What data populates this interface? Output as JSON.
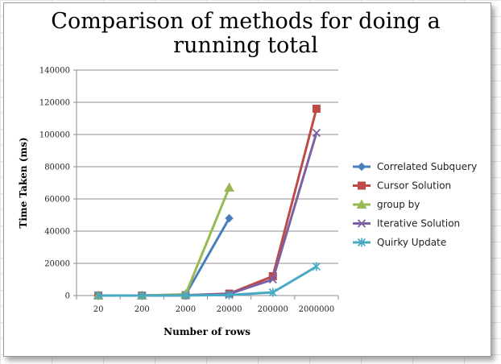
{
  "chart_data": {
    "type": "line",
    "title_lines": [
      "Comparison of methods for doing a",
      "running total"
    ],
    "xlabel": "Number of rows",
    "ylabel": "Time Taken (ms)",
    "categories": [
      "20",
      "200",
      "2000",
      "20000",
      "200000",
      "2000000"
    ],
    "y_ticks": [
      "0",
      "20000",
      "40000",
      "60000",
      "80000",
      "100000",
      "120000",
      "140000"
    ],
    "ylim": [
      0,
      140000
    ],
    "grid": "horizontal",
    "legend_position": "right",
    "series": [
      {
        "name": "Correlated Subquery",
        "color": "#4a7ebb",
        "marker": "diamond",
        "values": [
          0,
          0,
          500,
          48000,
          null,
          null
        ]
      },
      {
        "name": "Cursor Solution",
        "color": "#be4b48",
        "marker": "square",
        "values": [
          0,
          0,
          200,
          1200,
          12000,
          116000
        ]
      },
      {
        "name": "group by",
        "color": "#98b954",
        "marker": "triangle",
        "values": [
          0,
          0,
          800,
          67000,
          null,
          null
        ]
      },
      {
        "name": "Iterative Solution",
        "color": "#7d60a0",
        "marker": "x",
        "values": [
          0,
          0,
          150,
          1000,
          10000,
          101000
        ]
      },
      {
        "name": "Quirky Update",
        "color": "#46aac5",
        "marker": "star",
        "values": [
          0,
          0,
          50,
          300,
          2000,
          18000
        ]
      }
    ]
  }
}
